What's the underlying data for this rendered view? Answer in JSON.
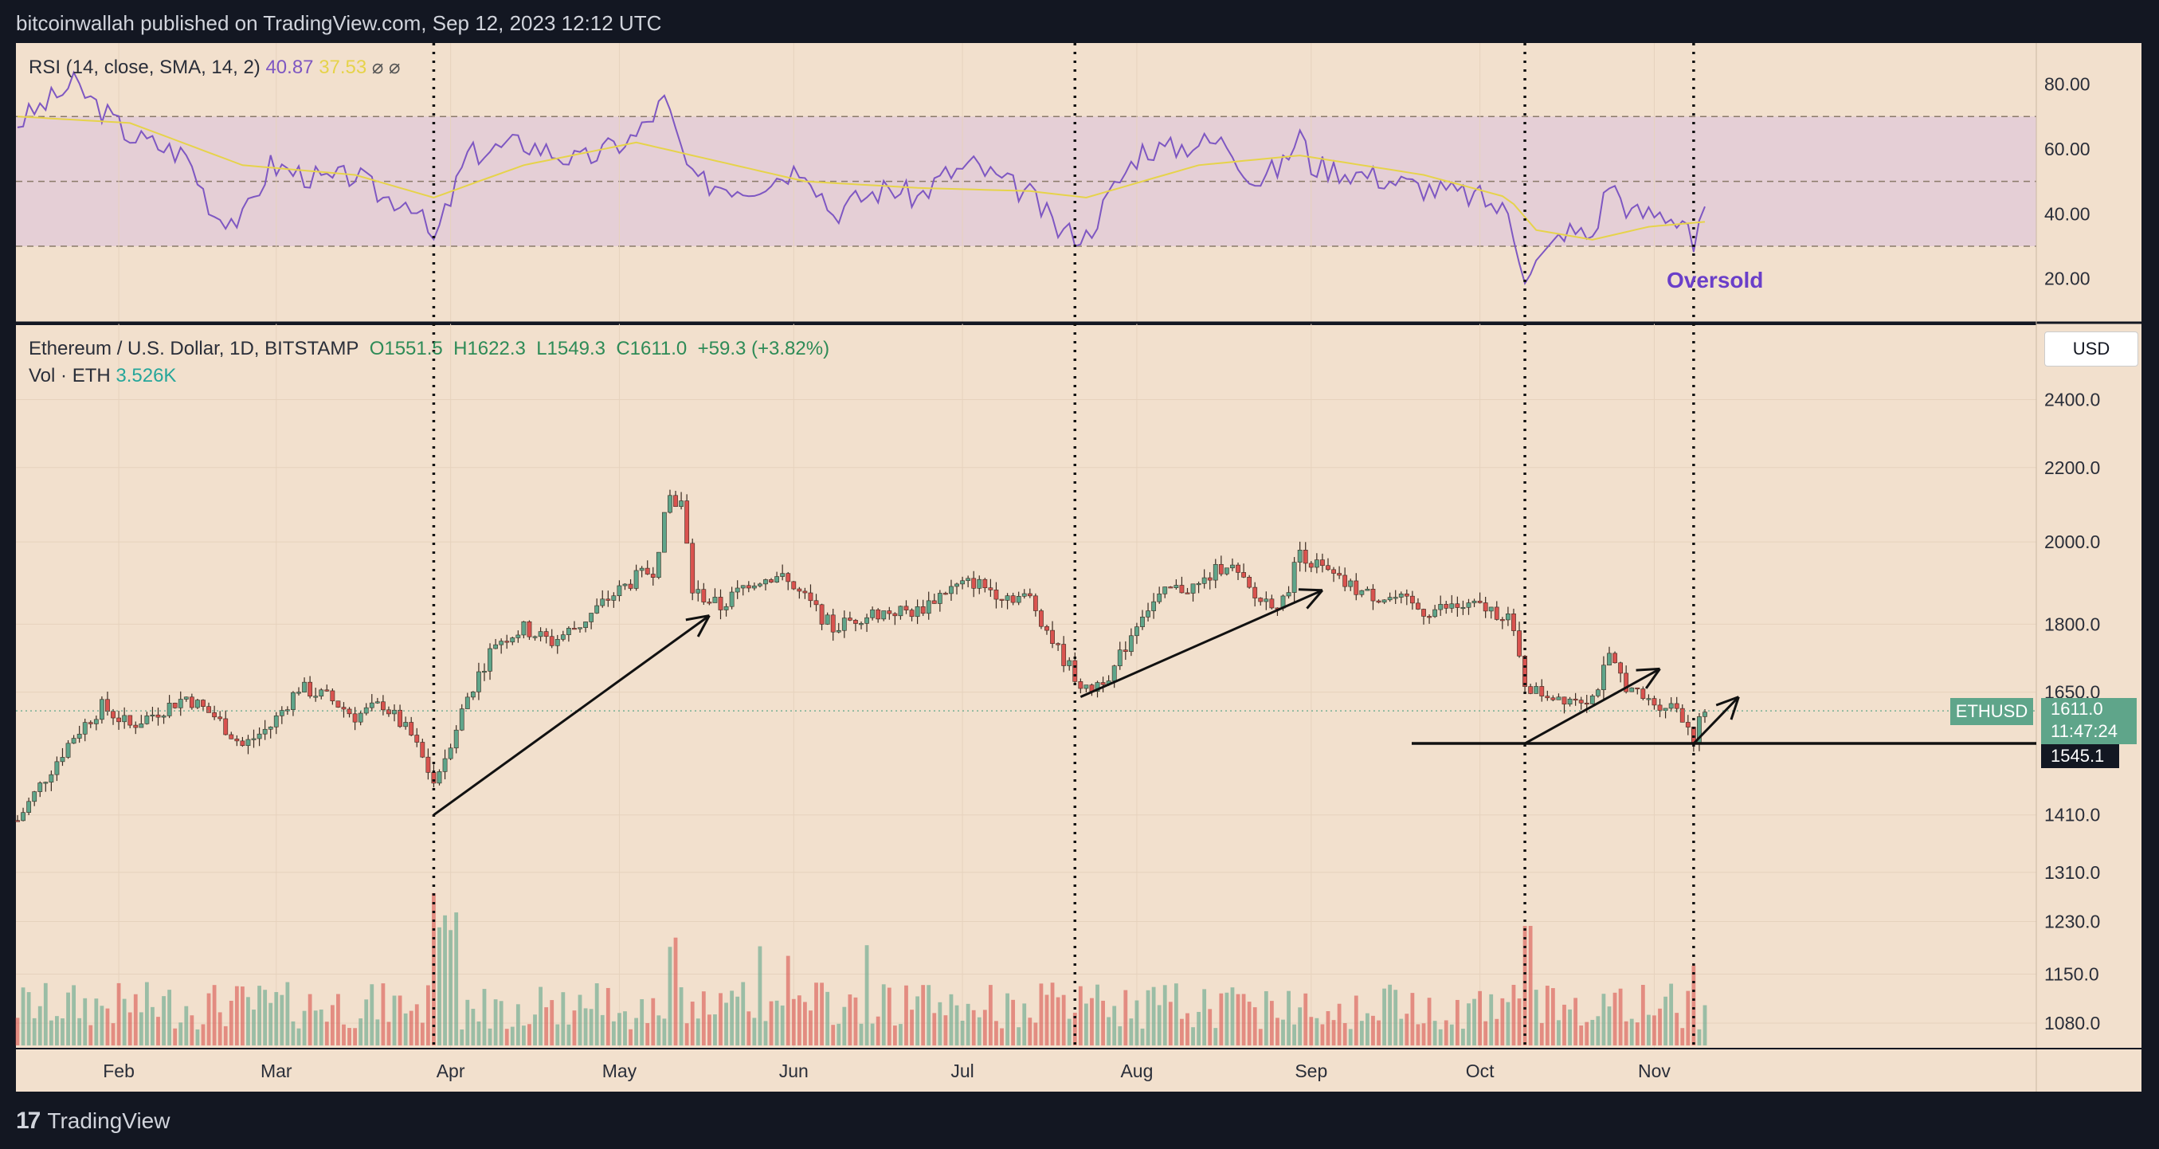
{
  "caption": "bitcoinwallah published on TradingView.com, Sep 12, 2023 12:12 UTC",
  "rsi_legend": {
    "label": "RSI (14, close, SMA, 14, 2)",
    "rsi": "40.87",
    "sma": "37.53",
    "icons": [
      "eye-off-icon",
      "eye-off-icon"
    ]
  },
  "main_legend": {
    "symbol": "Ethereum / U.S. Dollar, 1D, BITSTAMP",
    "o": "O1551.5",
    "h": "H1622.3",
    "l": "L1549.3",
    "c": "C1611.0",
    "chg": "+59.3 (+3.82%)"
  },
  "vol_legend": {
    "label": "Vol · ETH",
    "value": "3.526K"
  },
  "annotation": "Oversold",
  "currency": "USD",
  "ticker_tag": {
    "symbol": "ETHUSD",
    "price": "1611.0",
    "countdown": "11:47:24"
  },
  "support_tag": "1545.1",
  "brand": "TradingView",
  "colors": {
    "up": "#5fa58a",
    "down": "#d9534f",
    "rsi": "#7e57c2",
    "sma": "#e6d34a",
    "bg": "#f2e0cd"
  },
  "chart_data": {
    "type": "candlestick",
    "rsi_axis_ticks": [
      "80.00",
      "60.00",
      "40.00",
      "20.00"
    ],
    "rsi_bands": [
      30,
      50,
      70
    ],
    "price_axis_ticks": [
      "2400.0",
      "2200.0",
      "2000.0",
      "1800.0",
      "1650.0",
      "1410.0",
      "1310.0",
      "1230.0",
      "1150.0",
      "1080.0"
    ],
    "price_axis_scale": "log",
    "x_ticks": [
      "Feb",
      "Mar",
      "Apr",
      "May",
      "Jun",
      "Jul",
      "Aug",
      "Sep",
      "Oct",
      "Nov"
    ],
    "support_level": 1545.1,
    "last_close": 1611.0,
    "price_path": [
      [
        0,
        1400
      ],
      [
        5,
        1480
      ],
      [
        10,
        1560
      ],
      [
        15,
        1620
      ],
      [
        20,
        1580
      ],
      [
        25,
        1610
      ],
      [
        30,
        1640
      ],
      [
        35,
        1600
      ],
      [
        40,
        1540
      ],
      [
        45,
        1580
      ],
      [
        50,
        1660
      ],
      [
        55,
        1640
      ],
      [
        60,
        1600
      ],
      [
        65,
        1625
      ],
      [
        70,
        1560
      ],
      [
        74,
        1470
      ],
      [
        76,
        1520
      ],
      [
        80,
        1640
      ],
      [
        85,
        1760
      ],
      [
        90,
        1790
      ],
      [
        95,
        1760
      ],
      [
        100,
        1800
      ],
      [
        105,
        1860
      ],
      [
        110,
        1910
      ],
      [
        113,
        1930
      ],
      [
        116,
        2120
      ],
      [
        118,
        2100
      ],
      [
        120,
        1880
      ],
      [
        125,
        1840
      ],
      [
        130,
        1900
      ],
      [
        135,
        1920
      ],
      [
        140,
        1860
      ],
      [
        145,
        1790
      ],
      [
        150,
        1820
      ],
      [
        155,
        1830
      ],
      [
        160,
        1830
      ],
      [
        165,
        1880
      ],
      [
        170,
        1900
      ],
      [
        175,
        1870
      ],
      [
        180,
        1860
      ],
      [
        185,
        1740
      ],
      [
        190,
        1650
      ],
      [
        195,
        1700
      ],
      [
        200,
        1830
      ],
      [
        205,
        1880
      ],
      [
        210,
        1890
      ],
      [
        215,
        1950
      ],
      [
        220,
        1860
      ],
      [
        225,
        1850
      ],
      [
        228,
        1980
      ],
      [
        230,
        1950
      ],
      [
        235,
        1900
      ],
      [
        240,
        1870
      ],
      [
        245,
        1860
      ],
      [
        250,
        1830
      ],
      [
        255,
        1840
      ],
      [
        260,
        1840
      ],
      [
        265,
        1820
      ],
      [
        268,
        1670
      ],
      [
        270,
        1650
      ],
      [
        275,
        1640
      ],
      [
        280,
        1640
      ],
      [
        283,
        1720
      ],
      [
        287,
        1650
      ],
      [
        290,
        1630
      ],
      [
        295,
        1620
      ],
      [
        298,
        1560
      ],
      [
        300,
        1611
      ]
    ],
    "rsi_path": [
      [
        0,
        68
      ],
      [
        10,
        80
      ],
      [
        20,
        64
      ],
      [
        30,
        58
      ],
      [
        35,
        40
      ],
      [
        40,
        38
      ],
      [
        45,
        55
      ],
      [
        55,
        50
      ],
      [
        60,
        52
      ],
      [
        65,
        45
      ],
      [
        70,
        44
      ],
      [
        74,
        31
      ],
      [
        80,
        58
      ],
      [
        90,
        62
      ],
      [
        100,
        56
      ],
      [
        110,
        64
      ],
      [
        115,
        75
      ],
      [
        120,
        50
      ],
      [
        130,
        48
      ],
      [
        140,
        55
      ],
      [
        145,
        40
      ],
      [
        150,
        45
      ],
      [
        155,
        48
      ],
      [
        160,
        45
      ],
      [
        165,
        52
      ],
      [
        170,
        55
      ],
      [
        175,
        50
      ],
      [
        180,
        46
      ],
      [
        185,
        35
      ],
      [
        190,
        33
      ],
      [
        195,
        48
      ],
      [
        200,
        60
      ],
      [
        205,
        60
      ],
      [
        210,
        62
      ],
      [
        215,
        62
      ],
      [
        220,
        50
      ],
      [
        225,
        55
      ],
      [
        228,
        65
      ],
      [
        230,
        55
      ],
      [
        240,
        52
      ],
      [
        250,
        48
      ],
      [
        260,
        45
      ],
      [
        265,
        40
      ],
      [
        268,
        22
      ],
      [
        272,
        28
      ],
      [
        275,
        35
      ],
      [
        280,
        33
      ],
      [
        283,
        50
      ],
      [
        287,
        40
      ],
      [
        292,
        40
      ],
      [
        297,
        38
      ],
      [
        298,
        29
      ],
      [
        300,
        40.87
      ]
    ],
    "sma_path": [
      [
        0,
        70
      ],
      [
        20,
        68
      ],
      [
        40,
        55
      ],
      [
        60,
        52
      ],
      [
        74,
        45
      ],
      [
        90,
        55
      ],
      [
        110,
        62
      ],
      [
        120,
        58
      ],
      [
        140,
        50
      ],
      [
        160,
        48
      ],
      [
        180,
        47
      ],
      [
        190,
        45
      ],
      [
        210,
        55
      ],
      [
        228,
        58
      ],
      [
        250,
        52
      ],
      [
        265,
        45
      ],
      [
        270,
        35
      ],
      [
        280,
        32
      ],
      [
        290,
        36
      ],
      [
        300,
        37.53
      ]
    ],
    "vertical_markers_x": [
      74,
      188,
      268,
      298
    ],
    "trend_arrows": [
      {
        "from": [
          74,
          1410
        ],
        "to": [
          123,
          1820
        ]
      },
      {
        "from": [
          189,
          1640
        ],
        "to": [
          232,
          1880
        ]
      },
      {
        "from": [
          268,
          1545
        ],
        "to": [
          292,
          1700
        ]
      },
      {
        "from": [
          298,
          1545
        ],
        "to": [
          306,
          1640
        ]
      }
    ]
  }
}
